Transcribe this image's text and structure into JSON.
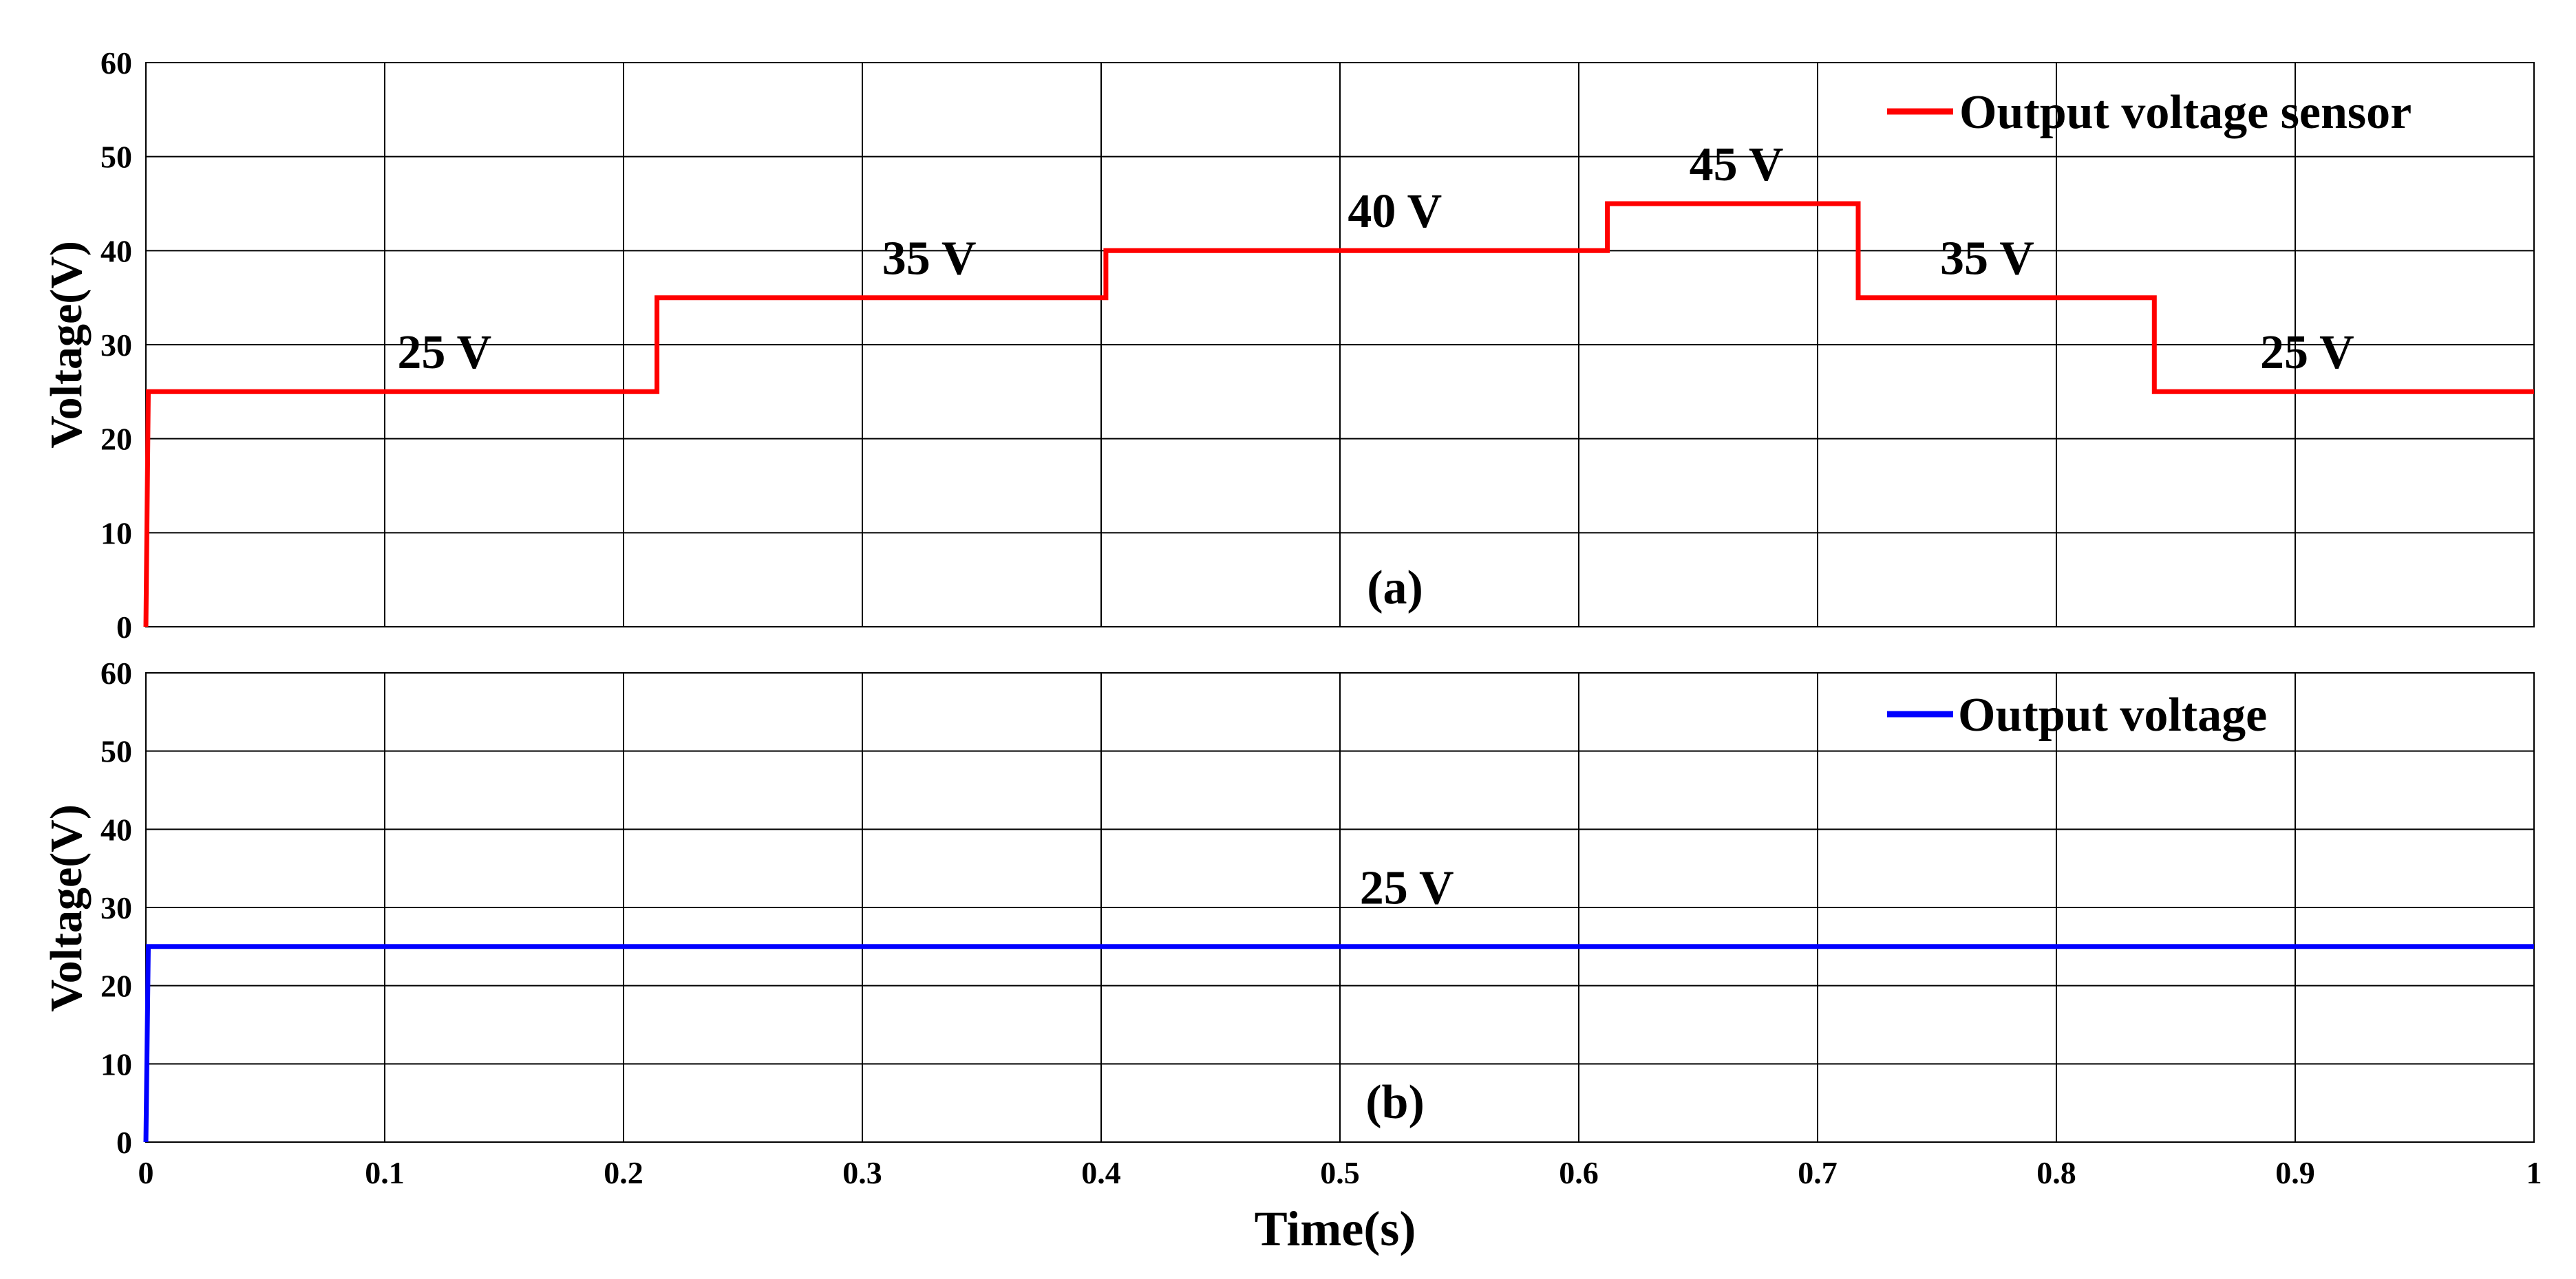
{
  "chart_data": [
    {
      "type": "line",
      "panel_label": "(a)",
      "ylabel": "Voltage(V)",
      "xlim": [
        0,
        1
      ],
      "ylim": [
        0,
        60
      ],
      "yticks": [
        "0",
        "10",
        "20",
        "30",
        "40",
        "50",
        "60"
      ],
      "grid": true,
      "legend_position": "top-right",
      "series": [
        {
          "name": "Output voltage sensor",
          "color": "#ff0000",
          "x": [
            0,
            0.001,
            0.214,
            0.214,
            0.402,
            0.402,
            0.612,
            0.612,
            0.717,
            0.717,
            0.841,
            0.841,
            1.0
          ],
          "y": [
            0,
            25,
            25,
            35,
            35,
            40,
            40,
            45,
            45,
            35,
            35,
            25,
            25
          ]
        }
      ],
      "annotations": [
        {
          "text": "25 V",
          "x": 0.125,
          "y": 27.5
        },
        {
          "text": "35 V",
          "x": 0.328,
          "y": 37.5
        },
        {
          "text": "40 V",
          "x": 0.523,
          "y": 42.5
        },
        {
          "text": "45 V",
          "x": 0.666,
          "y": 47.5
        },
        {
          "text": "35 V",
          "x": 0.771,
          "y": 37.5
        },
        {
          "text": "25 V",
          "x": 0.905,
          "y": 27.5
        }
      ]
    },
    {
      "type": "line",
      "panel_label": "(b)",
      "ylabel": "Voltage(V)",
      "xlabel": "Time(s)",
      "xlim": [
        0,
        1
      ],
      "ylim": [
        0,
        60
      ],
      "xticks": [
        "0",
        "0.1",
        "0.2",
        "0.3",
        "0.4",
        "0.5",
        "0.6",
        "0.7",
        "0.8",
        "0.9",
        "1"
      ],
      "yticks": [
        "0",
        "10",
        "20",
        "30",
        "40",
        "50",
        "60"
      ],
      "grid": true,
      "legend_position": "top-right",
      "series": [
        {
          "name": "Output voltage",
          "color": "#0000ff",
          "x": [
            0,
            0.001,
            1.0
          ],
          "y": [
            0,
            25,
            25
          ]
        }
      ],
      "annotations": [
        {
          "text": "25 V",
          "x": 0.528,
          "y": 30.5
        }
      ]
    }
  ]
}
